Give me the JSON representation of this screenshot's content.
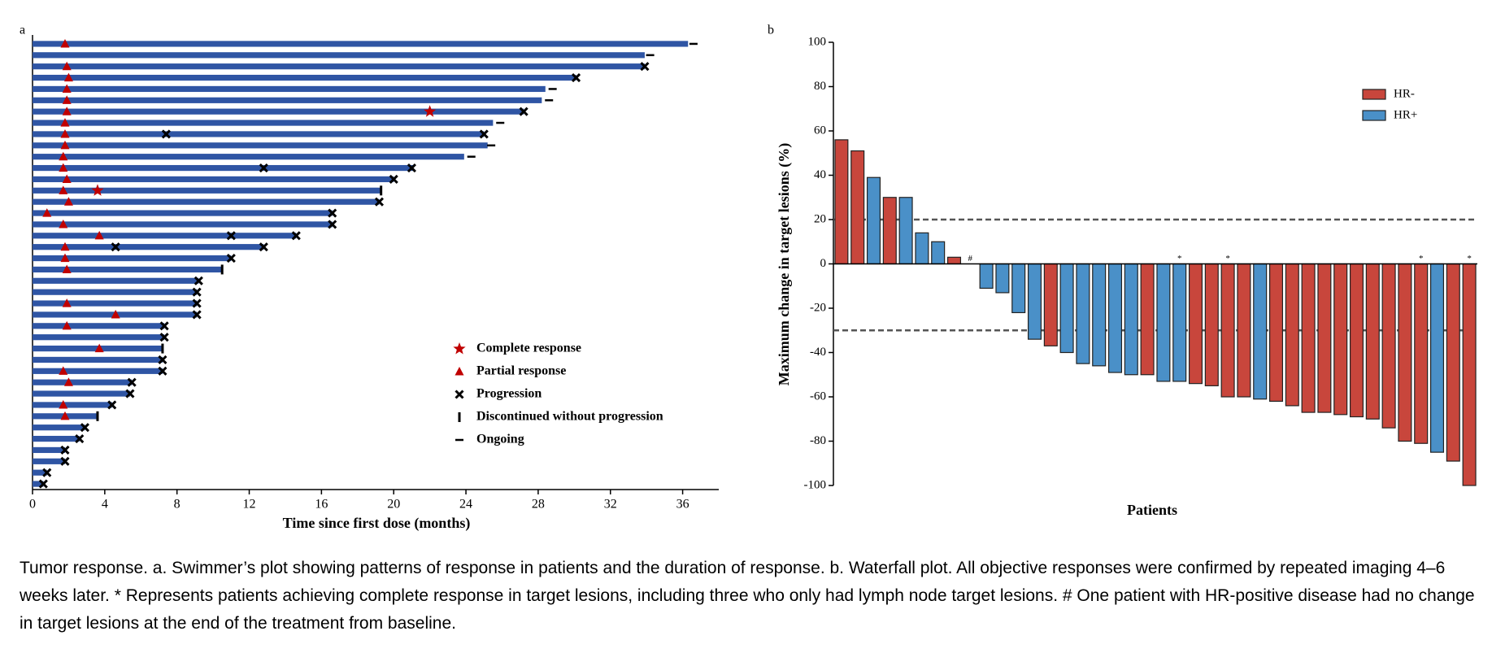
{
  "chart_data": [
    {
      "type": "swimmer",
      "panel_label": "a",
      "xlabel": "Time since first dose (months)",
      "xlim": [
        0,
        38
      ],
      "xticks": [
        0,
        4,
        8,
        12,
        16,
        20,
        24,
        28,
        32,
        36
      ],
      "bar_color": "#2f55a4",
      "durations": [
        36.3,
        33.9,
        33.9,
        30.1,
        28.4,
        28.2,
        27.2,
        25.5,
        25.0,
        25.2,
        23.9,
        21.1,
        20.0,
        19.3,
        19.2,
        16.6,
        16.6,
        14.6,
        12.8,
        11.0,
        10.5,
        9.2,
        9.1,
        9.1,
        9.1,
        7.3,
        7.3,
        7.2,
        7.2,
        7.2,
        5.5,
        5.4,
        4.4,
        3.6,
        2.9,
        2.6,
        1.8,
        1.8,
        0.8,
        0.6
      ],
      "markers": [
        {
          "name": "Complete response",
          "symbol": "star",
          "color": "#c00000",
          "values": [
            [],
            [],
            [],
            [],
            [],
            [],
            [
              22.0
            ],
            [],
            [],
            [],
            [],
            [],
            [],
            [
              3.6
            ],
            [],
            [],
            [],
            [],
            [],
            [],
            [],
            [],
            [],
            [],
            [],
            [],
            [],
            [],
            [],
            [],
            [],
            [],
            [],
            [],
            [],
            [],
            [],
            [],
            [],
            []
          ]
        },
        {
          "name": "Partial response",
          "symbol": "triangle",
          "color": "#c00000",
          "values": [
            [
              1.8
            ],
            [],
            [
              1.9
            ],
            [
              2.0
            ],
            [
              1.9
            ],
            [
              1.9
            ],
            [
              1.9
            ],
            [
              1.8
            ],
            [
              1.8
            ],
            [
              1.8
            ],
            [
              1.7
            ],
            [
              1.7
            ],
            [
              1.9
            ],
            [
              1.7
            ],
            [
              2.0
            ],
            [
              0.8
            ],
            [
              1.7
            ],
            [
              3.7
            ],
            [
              1.8
            ],
            [
              1.8
            ],
            [
              1.9
            ],
            [],
            [],
            [
              1.9
            ],
            [
              4.6
            ],
            [
              1.9
            ],
            [],
            [
              3.7
            ],
            [],
            [
              1.7
            ],
            [
              2.0
            ],
            [],
            [
              1.7
            ],
            [
              1.8
            ],
            [],
            [],
            [],
            [],
            [],
            []
          ]
        },
        {
          "name": "Progression",
          "symbol": "cross",
          "color": "#000000",
          "values": [
            [],
            [],
            [
              33.9
            ],
            [
              30.1
            ],
            [],
            [],
            [
              27.2
            ],
            [],
            [
              7.4,
              25.0
            ],
            [],
            [],
            [
              12.8,
              21.0
            ],
            [
              20.0
            ],
            [],
            [
              19.2
            ],
            [
              16.6
            ],
            [
              16.6
            ],
            [
              11.0,
              14.6
            ],
            [
              4.6,
              12.8
            ],
            [
              11.0
            ],
            [],
            [
              9.2
            ],
            [
              9.1
            ],
            [
              9.1
            ],
            [
              9.1
            ],
            [
              7.3
            ],
            [
              7.3
            ],
            [],
            [
              7.2
            ],
            [
              7.2
            ],
            [
              5.5
            ],
            [
              5.4
            ],
            [
              4.4
            ],
            [],
            [
              2.9
            ],
            [
              2.6
            ],
            [
              1.8
            ],
            [
              1.8
            ],
            [
              0.8
            ],
            [
              0.6
            ]
          ]
        },
        {
          "name": "Discontinued without progression",
          "symbol": "vbar",
          "color": "#000000",
          "values": [
            [],
            [],
            [],
            [],
            [],
            [],
            [],
            [],
            [],
            [],
            [],
            [],
            [],
            [
              19.3
            ],
            [],
            [],
            [],
            [],
            [],
            [],
            [
              10.5
            ],
            [],
            [],
            [],
            [],
            [],
            [],
            [
              7.2
            ],
            [],
            [],
            [],
            [],
            [],
            [
              3.6
            ],
            [],
            [],
            [],
            [],
            [],
            []
          ]
        },
        {
          "name": "Ongoing",
          "symbol": "hbar",
          "color": "#000000",
          "values": [
            [
              36.6
            ],
            [
              34.2
            ],
            [],
            [],
            [
              28.8
            ],
            [
              28.6
            ],
            [],
            [
              25.9
            ],
            [],
            [
              25.4
            ],
            [
              24.3
            ],
            [],
            [],
            [],
            [],
            [],
            [],
            [],
            [],
            [],
            [],
            [],
            [],
            [],
            [],
            [],
            [],
            [],
            [],
            [],
            [],
            [],
            [],
            [],
            [],
            [],
            [],
            [],
            [],
            []
          ]
        }
      ]
    },
    {
      "type": "waterfall",
      "panel_label": "b",
      "ylabel": "Maximum change in target lesions (%)",
      "xlabel": "Patients",
      "ylim": [
        -100,
        100
      ],
      "yticks": [
        -100,
        -80,
        -60,
        -40,
        -20,
        0,
        20,
        40,
        60,
        80,
        100
      ],
      "reference_lines": [
        20,
        -30
      ],
      "legend": "upper right",
      "series": [
        {
          "name": "HR-",
          "color": "#c8463c",
          "values": [
            56,
            51,
            null,
            30,
            null,
            null,
            null,
            3,
            null,
            null,
            null,
            null,
            null,
            -37,
            null,
            null,
            null,
            null,
            null,
            -50,
            null,
            null,
            -54,
            -55,
            -60,
            -60,
            null,
            -62,
            -64,
            -67,
            -67,
            -68,
            -69,
            -70,
            -74,
            -80,
            -81,
            null,
            -89,
            -100
          ]
        },
        {
          "name": "HR+",
          "color": "#4a90c8",
          "values": [
            null,
            null,
            39,
            null,
            30,
            14,
            10,
            null,
            0,
            -11,
            -13,
            -22,
            -34,
            null,
            -40,
            -45,
            -46,
            -49,
            -50,
            null,
            -53,
            -53,
            null,
            null,
            null,
            null,
            -61,
            null,
            null,
            null,
            null,
            null,
            null,
            null,
            null,
            null,
            null,
            -85,
            null,
            null
          ]
        }
      ],
      "point_labels": [
        null,
        null,
        null,
        null,
        null,
        null,
        null,
        null,
        "#",
        null,
        null,
        null,
        null,
        null,
        null,
        null,
        null,
        null,
        null,
        null,
        null,
        "*",
        null,
        null,
        "*",
        null,
        null,
        null,
        null,
        null,
        null,
        null,
        null,
        null,
        null,
        null,
        "*",
        null,
        null,
        "*"
      ]
    }
  ],
  "caption": "Tumor response. a. Swimmer’s plot showing patterns of response in patients and the duration of response. b. Waterfall plot. All objective responses were confirmed by repeated imaging 4–6 weeks later. * Represents patients achieving complete response in target lesions, including three who only had lymph node target lesions. # One patient with HR-positive disease had no change in target lesions at the end of the treatment from baseline."
}
